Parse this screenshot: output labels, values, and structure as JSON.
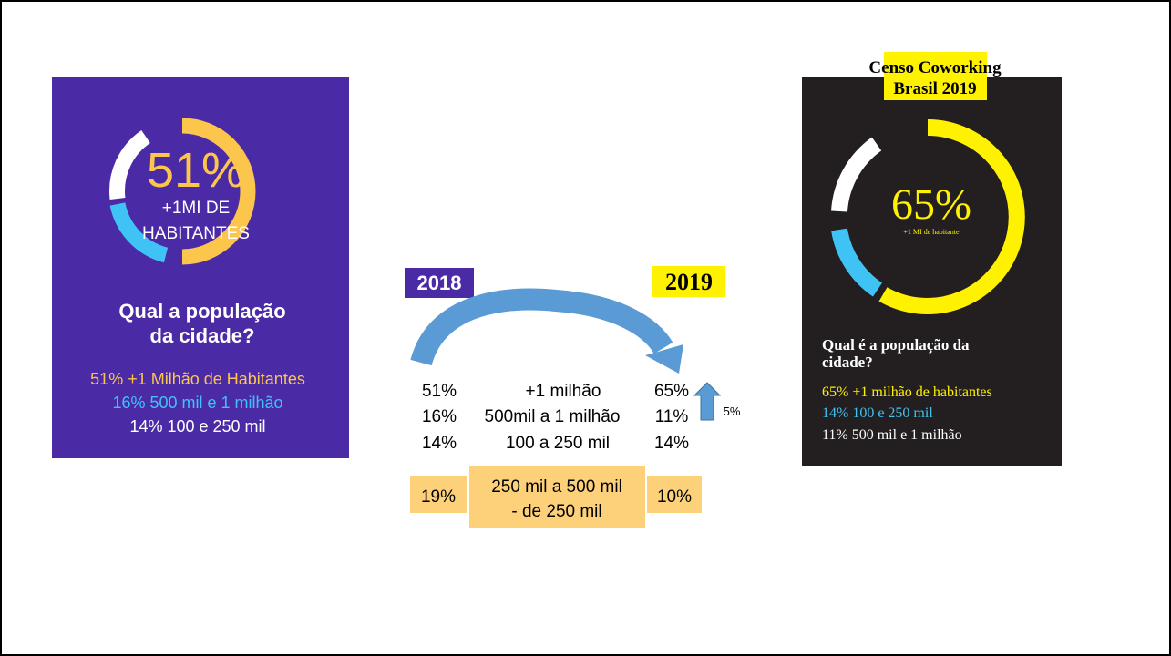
{
  "left_card": {
    "center_value": "51%",
    "center_line1": "+1MI DE",
    "center_line2": "HABITANTES",
    "question_line1": "Qual a população",
    "question_line2": "da cidade?",
    "items": [
      "51% +1 Milhão de Habitantes",
      "16% 500 mil e 1 milhão",
      "14% 100 e 250 mil"
    ]
  },
  "comparison": {
    "year_left": "2018",
    "year_right": "2019",
    "rows": [
      [
        "51%",
        "+1 milhão",
        "65%"
      ],
      [
        "16%",
        "500mil a 1 milhão",
        "11%"
      ],
      [
        "14%",
        "100 a 250 mil",
        "14%"
      ]
    ],
    "change": "5%",
    "highlight": {
      "left": "19%",
      "label_line1": "250 mil a 500 mil",
      "label_line2": "- de 250 mil",
      "right": "10%"
    }
  },
  "right_card": {
    "badge_line1": "Censo Coworking",
    "badge_line2": "Brasil 2019",
    "center_value": "65%",
    "center_sub": "+1 MI de habitante",
    "question_line1": "Qual é a população da",
    "question_line2": "cidade?",
    "items": [
      "65% +1 milhão de habitantes",
      "14% 100 e 250 mil",
      "11% 500 mil e 1 milhão"
    ]
  }
}
